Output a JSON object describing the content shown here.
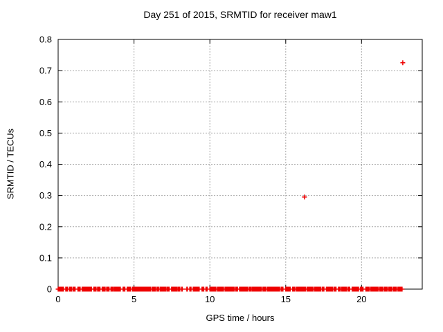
{
  "window": {
    "background": "#ffffff"
  },
  "chart_data": {
    "type": "scatter",
    "title": "Day 251 of 2015, SRMTID for receiver maw1",
    "xlabel": "GPS time / hours",
    "ylabel": "SRMTID / TECUs",
    "xlim": [
      0,
      24
    ],
    "ylim": [
      0,
      0.8
    ],
    "grid": true,
    "legend": "none",
    "marker": "plus",
    "marker_size_px": 7,
    "colors": {
      "marker": "#ee0000",
      "grid": "#a8a8a8",
      "axis": "#000000",
      "text": "#000000"
    },
    "xticks": [
      {
        "value": 0,
        "label": "0"
      },
      {
        "value": 5,
        "label": "5"
      },
      {
        "value": 10,
        "label": "10"
      },
      {
        "value": 15,
        "label": "15"
      },
      {
        "value": 20,
        "label": "20"
      }
    ],
    "yticks": [
      {
        "value": 0.0,
        "label": "0"
      },
      {
        "value": 0.1,
        "label": "0.1"
      },
      {
        "value": 0.2,
        "label": "0.2"
      },
      {
        "value": 0.3,
        "label": "0.3"
      },
      {
        "value": 0.4,
        "label": "0.4"
      },
      {
        "value": 0.5,
        "label": "0.5"
      },
      {
        "value": 0.6,
        "label": "0.6"
      },
      {
        "value": 0.7,
        "label": "0.7"
      },
      {
        "value": 0.8,
        "label": "0.8"
      }
    ],
    "series": [
      {
        "name": "SRMTID",
        "outlier_points": [
          {
            "x": 16.24,
            "y": 0.295
          },
          {
            "x": 22.72,
            "y": 0.725
          }
        ],
        "zero_band_value": 0,
        "zero_band_segments_hours": [
          [
            0.0,
            0.35
          ],
          [
            0.5,
            0.62
          ],
          [
            0.75,
            0.9
          ],
          [
            1.0,
            1.12
          ],
          [
            1.3,
            1.45
          ],
          [
            1.58,
            1.78
          ],
          [
            1.82,
            2.2
          ],
          [
            2.35,
            2.5
          ],
          [
            2.6,
            2.76
          ],
          [
            2.9,
            3.1
          ],
          [
            3.2,
            3.36
          ],
          [
            3.48,
            3.64
          ],
          [
            3.72,
            4.1
          ],
          [
            4.28,
            4.4
          ],
          [
            4.55,
            4.76
          ],
          [
            4.88,
            5.5
          ],
          [
            5.56,
            6.1
          ],
          [
            6.2,
            6.4
          ],
          [
            6.5,
            6.62
          ],
          [
            6.72,
            7.1
          ],
          [
            7.18,
            7.32
          ],
          [
            7.48,
            7.82
          ],
          [
            7.9,
            8.02
          ],
          [
            8.14,
            8.18
          ],
          [
            8.48,
            8.52
          ],
          [
            8.68,
            8.76
          ],
          [
            8.9,
            9.3
          ],
          [
            9.48,
            9.6
          ],
          [
            9.74,
            9.82
          ],
          [
            10.0,
            10.4
          ],
          [
            10.5,
            10.9
          ],
          [
            11.0,
            11.6
          ],
          [
            11.7,
            11.82
          ],
          [
            11.96,
            12.5
          ],
          [
            12.6,
            12.72
          ],
          [
            12.8,
            13.4
          ],
          [
            13.5,
            13.7
          ],
          [
            13.8,
            14.6
          ],
          [
            14.7,
            14.82
          ],
          [
            15.0,
            15.3
          ],
          [
            15.46,
            15.6
          ],
          [
            15.7,
            16.1
          ],
          [
            16.14,
            16.3
          ],
          [
            16.4,
            16.8
          ],
          [
            16.9,
            17.3
          ],
          [
            17.4,
            17.52
          ],
          [
            17.68,
            18.1
          ],
          [
            18.2,
            18.32
          ],
          [
            18.48,
            18.6
          ],
          [
            18.7,
            19.0
          ],
          [
            19.1,
            19.22
          ],
          [
            19.38,
            19.8
          ],
          [
            19.92,
            20.1
          ],
          [
            20.28,
            20.5
          ],
          [
            20.6,
            21.1
          ],
          [
            21.2,
            21.4
          ],
          [
            21.5,
            21.7
          ],
          [
            21.8,
            22.0
          ],
          [
            22.1,
            22.3
          ],
          [
            22.4,
            22.67
          ]
        ],
        "zero_band_sample_step_hours": 0.045
      }
    ]
  }
}
